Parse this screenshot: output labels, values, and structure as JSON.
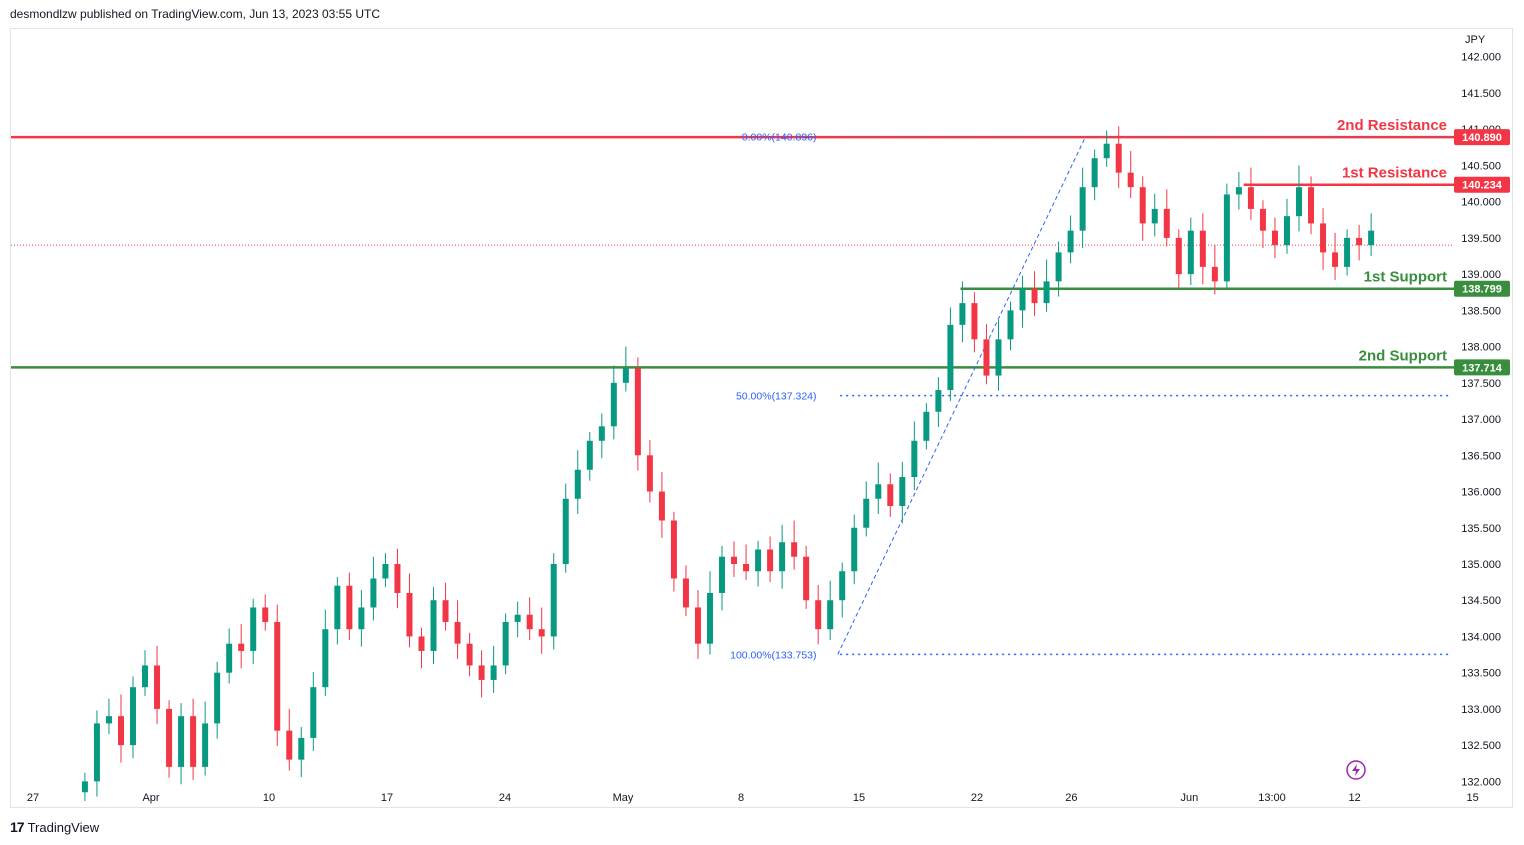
{
  "header": {
    "text": "desmondlzw published on TradingView.com, Jun 13, 2023 03:55 UTC"
  },
  "footer": {
    "logo": "17",
    "brand": "TradingView"
  },
  "colors": {
    "up": "#089981",
    "down": "#f23645",
    "resistance": "#f23645",
    "support": "#388e3c",
    "fib": "#2962ff",
    "price_dotted": "#f23645"
  },
  "chart_data": {
    "type": "candlestick",
    "currency": "JPY",
    "y_ticks": [
      "142.000",
      "141.500",
      "141.000",
      "140.500",
      "140.000",
      "139.500",
      "139.000",
      "138.500",
      "138.000",
      "137.500",
      "137.000",
      "136.500",
      "136.000",
      "135.500",
      "135.000",
      "134.500",
      "134.000",
      "133.500",
      "133.000",
      "132.500",
      "132.000"
    ],
    "y_range": [
      131.95,
      142.3
    ],
    "x_ticks": [
      {
        "label": "27",
        "pos": 0
      },
      {
        "label": "Apr",
        "pos": 5
      },
      {
        "label": "10",
        "pos": 10
      },
      {
        "label": "17",
        "pos": 15
      },
      {
        "label": "24",
        "pos": 20
      },
      {
        "label": "May",
        "pos": 25
      },
      {
        "label": "8",
        "pos": 30
      },
      {
        "label": "15",
        "pos": 35
      },
      {
        "label": "22",
        "pos": 40
      },
      {
        "label": "26",
        "pos": 44
      },
      {
        "label": "Jun",
        "pos": 49
      },
      {
        "label": "13:00",
        "pos": 52.5
      },
      {
        "label": "12",
        "pos": 56
      },
      {
        "label": "15",
        "pos": 61
      }
    ],
    "levels": [
      {
        "name": "2nd Resistance",
        "value": 140.89,
        "badge": "140.890",
        "kind": "resistance",
        "from_pos": -1
      },
      {
        "name": "1st Resistance",
        "value": 140.234,
        "badge": "140.234",
        "kind": "resistance",
        "from_pos": 51.3
      },
      {
        "name": "1st Support",
        "value": 138.799,
        "badge": "138.799",
        "kind": "support",
        "from_pos": 39.3
      },
      {
        "name": "2nd Support",
        "value": 137.714,
        "badge": "137.714",
        "kind": "support",
        "from_pos": -1
      }
    ],
    "fibonacci": [
      {
        "label": "0.00%(140.896)",
        "value": 140.896
      },
      {
        "label": "50.00%(137.324)",
        "value": 137.324
      },
      {
        "label": "100.00%(133.753)",
        "value": 133.753
      }
    ],
    "last_price": 139.4,
    "closes": [
      132.0,
      132.8,
      132.9,
      132.5,
      133.3,
      133.6,
      133.0,
      132.2,
      132.9,
      132.2,
      132.8,
      133.5,
      133.9,
      133.8,
      134.4,
      134.2,
      132.7,
      132.3,
      132.6,
      133.3,
      134.1,
      134.7,
      134.1,
      134.4,
      134.8,
      135.0,
      134.6,
      134.0,
      133.8,
      134.5,
      134.2,
      133.9,
      133.6,
      133.4,
      133.6,
      134.2,
      134.3,
      134.1,
      134.0,
      135.0,
      135.9,
      136.3,
      136.7,
      136.9,
      137.5,
      137.7,
      136.5,
      136.0,
      135.6,
      134.8,
      134.4,
      133.9,
      134.6,
      135.1,
      135.0,
      134.9,
      135.2,
      134.9,
      135.3,
      135.1,
      134.5,
      134.1,
      134.5,
      134.9,
      135.5,
      135.9,
      136.1,
      135.8,
      136.2,
      136.7,
      137.1,
      137.4,
      138.3,
      138.6,
      138.1,
      137.6,
      138.1,
      138.5,
      138.8,
      138.6,
      138.9,
      139.3,
      139.6,
      140.2,
      140.6,
      140.8,
      140.4,
      140.2,
      139.7,
      139.9,
      139.5,
      139.0,
      139.6,
      139.1,
      138.9,
      140.1,
      140.2,
      139.9,
      139.6,
      139.4,
      139.8,
      140.2,
      139.7,
      139.3,
      139.1,
      139.5,
      139.4,
      139.6
    ]
  }
}
